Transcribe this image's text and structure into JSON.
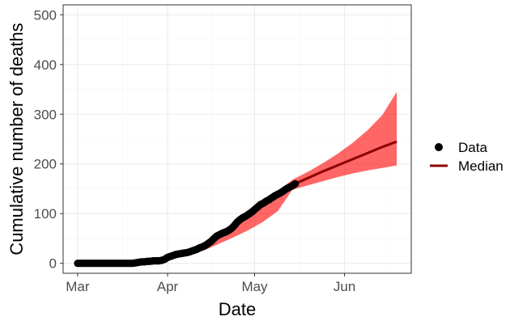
{
  "chart_data": {
    "type": "line",
    "xlabel": "Date",
    "ylabel": "Cumulative number of deaths",
    "x_ticks": [
      {
        "label": "Mar",
        "date": "2020-03-01"
      },
      {
        "label": "Apr",
        "date": "2020-04-01"
      },
      {
        "label": "May",
        "date": "2020-05-01"
      },
      {
        "label": "Jun",
        "date": "2020-06-01"
      }
    ],
    "xlim": [
      "2020-02-25",
      "2020-06-24"
    ],
    "ylim": [
      -20,
      520
    ],
    "y_ticks": [
      0,
      100,
      200,
      300,
      400,
      500
    ],
    "grid": true,
    "legend": {
      "position": "right",
      "items": [
        {
          "label": "Data",
          "kind": "point",
          "color": "#000000"
        },
        {
          "label": "Median",
          "kind": "line",
          "color": "#8b0000"
        }
      ]
    },
    "colors": {
      "data": "#000000",
      "median": "#8b0000",
      "band": "#ff0000"
    },
    "series": [
      {
        "name": "Data",
        "kind": "points",
        "x": [
          "2020-03-01",
          "2020-03-02",
          "2020-03-03",
          "2020-03-04",
          "2020-03-05",
          "2020-03-06",
          "2020-03-07",
          "2020-03-08",
          "2020-03-09",
          "2020-03-10",
          "2020-03-11",
          "2020-03-12",
          "2020-03-13",
          "2020-03-14",
          "2020-03-15",
          "2020-03-16",
          "2020-03-17",
          "2020-03-18",
          "2020-03-19",
          "2020-03-20",
          "2020-03-21",
          "2020-03-22",
          "2020-03-23",
          "2020-03-24",
          "2020-03-25",
          "2020-03-26",
          "2020-03-27",
          "2020-03-28",
          "2020-03-29",
          "2020-03-30",
          "2020-03-31",
          "2020-04-01",
          "2020-04-02",
          "2020-04-03",
          "2020-04-04",
          "2020-04-05",
          "2020-04-06",
          "2020-04-07",
          "2020-04-08",
          "2020-04-09",
          "2020-04-10",
          "2020-04-11",
          "2020-04-12",
          "2020-04-13",
          "2020-04-14",
          "2020-04-15",
          "2020-04-16",
          "2020-04-17",
          "2020-04-18",
          "2020-04-19",
          "2020-04-20",
          "2020-04-21",
          "2020-04-22",
          "2020-04-23",
          "2020-04-24",
          "2020-04-25",
          "2020-04-26",
          "2020-04-27",
          "2020-04-28",
          "2020-04-29",
          "2020-04-30",
          "2020-05-01",
          "2020-05-02",
          "2020-05-03",
          "2020-05-04",
          "2020-05-05",
          "2020-05-06",
          "2020-05-07",
          "2020-05-08",
          "2020-05-09",
          "2020-05-10",
          "2020-05-11",
          "2020-05-12",
          "2020-05-13",
          "2020-05-14",
          "2020-05-15"
        ],
        "y": [
          0,
          0,
          0,
          0,
          0,
          0,
          0,
          0,
          0,
          0,
          0,
          0,
          0,
          0,
          0,
          0,
          0,
          0,
          0,
          0,
          1,
          2,
          3,
          3,
          4,
          4,
          5,
          5,
          5,
          6,
          8,
          12,
          14,
          16,
          18,
          19,
          20,
          21,
          22,
          24,
          26,
          28,
          31,
          33,
          36,
          40,
          44,
          50,
          55,
          58,
          61,
          63,
          66,
          70,
          76,
          83,
          88,
          92,
          95,
          99,
          103,
          108,
          113,
          118,
          121,
          125,
          128,
          132,
          136,
          139,
          142,
          146,
          150,
          153,
          156,
          160
        ]
      },
      {
        "name": "Median",
        "kind": "line",
        "x": [
          "2020-05-15",
          "2020-05-20",
          "2020-05-25",
          "2020-05-30",
          "2020-06-04",
          "2020-06-09",
          "2020-06-14",
          "2020-06-19"
        ],
        "y": [
          160,
          173,
          186,
          198,
          210,
          222,
          234,
          245
        ],
        "band_lower": [
          150,
          158,
          166,
          174,
          181,
          187,
          192,
          197
        ],
        "band_upper": [
          170,
          186,
          203,
          222,
          243,
          268,
          298,
          345
        ]
      }
    ],
    "band_fit": {
      "x": [
        "2020-04-09",
        "2020-04-14",
        "2020-04-19",
        "2020-04-24",
        "2020-04-29",
        "2020-05-04",
        "2020-05-09",
        "2020-05-14"
      ],
      "lower": [
        18,
        27,
        40,
        53,
        67,
        84,
        105,
        148
      ],
      "upper": [
        30,
        42,
        58,
        72,
        96,
        125,
        145,
        168
      ]
    }
  }
}
